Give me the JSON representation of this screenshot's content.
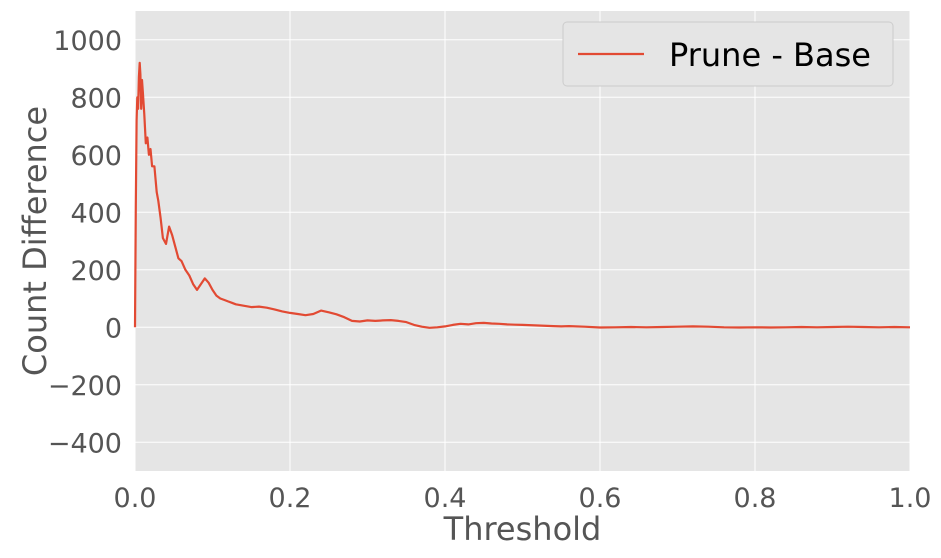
{
  "chart_data": {
    "type": "line",
    "xlabel": "Threshold",
    "ylabel": "Count Difference",
    "xlim": [
      0.0,
      1.0
    ],
    "ylim": [
      -500,
      1100
    ],
    "xticks": [
      0.0,
      0.2,
      0.4,
      0.6,
      0.8,
      1.0
    ],
    "xtick_labels": [
      "0.0",
      "0.2",
      "0.4",
      "0.6",
      "0.8",
      "1.0"
    ],
    "yticks": [
      -400,
      -200,
      0,
      200,
      400,
      600,
      800,
      1000
    ],
    "ytick_labels": [
      "−400",
      "−200",
      "0",
      "200",
      "400",
      "600",
      "800",
      "1000"
    ],
    "grid": true,
    "legend_position": "top-right",
    "background": "#e5e5e5",
    "grid_color": "#ffffff",
    "series": [
      {
        "name": "Prune - Base",
        "color": "#e24a33",
        "points": [
          [
            0.0,
            0
          ],
          [
            0.001,
            420
          ],
          [
            0.002,
            720
          ],
          [
            0.003,
            800
          ],
          [
            0.004,
            760
          ],
          [
            0.005,
            870
          ],
          [
            0.006,
            920
          ],
          [
            0.007,
            880
          ],
          [
            0.008,
            760
          ],
          [
            0.009,
            860
          ],
          [
            0.01,
            820
          ],
          [
            0.012,
            740
          ],
          [
            0.014,
            640
          ],
          [
            0.016,
            660
          ],
          [
            0.018,
            600
          ],
          [
            0.02,
            620
          ],
          [
            0.022,
            560
          ],
          [
            0.025,
            560
          ],
          [
            0.028,
            470
          ],
          [
            0.03,
            440
          ],
          [
            0.033,
            380
          ],
          [
            0.036,
            310
          ],
          [
            0.04,
            290
          ],
          [
            0.044,
            350
          ],
          [
            0.048,
            320
          ],
          [
            0.052,
            280
          ],
          [
            0.056,
            240
          ],
          [
            0.06,
            230
          ],
          [
            0.065,
            200
          ],
          [
            0.07,
            180
          ],
          [
            0.075,
            150
          ],
          [
            0.08,
            130
          ],
          [
            0.085,
            150
          ],
          [
            0.09,
            170
          ],
          [
            0.095,
            155
          ],
          [
            0.1,
            130
          ],
          [
            0.105,
            110
          ],
          [
            0.11,
            100
          ],
          [
            0.115,
            95
          ],
          [
            0.12,
            90
          ],
          [
            0.125,
            85
          ],
          [
            0.13,
            80
          ],
          [
            0.14,
            75
          ],
          [
            0.15,
            70
          ],
          [
            0.16,
            72
          ],
          [
            0.17,
            68
          ],
          [
            0.18,
            62
          ],
          [
            0.19,
            55
          ],
          [
            0.2,
            50
          ],
          [
            0.21,
            46
          ],
          [
            0.22,
            42
          ],
          [
            0.23,
            46
          ],
          [
            0.24,
            58
          ],
          [
            0.25,
            52
          ],
          [
            0.26,
            45
          ],
          [
            0.27,
            35
          ],
          [
            0.28,
            22
          ],
          [
            0.29,
            20
          ],
          [
            0.3,
            24
          ],
          [
            0.31,
            22
          ],
          [
            0.32,
            24
          ],
          [
            0.33,
            25
          ],
          [
            0.34,
            22
          ],
          [
            0.35,
            18
          ],
          [
            0.36,
            8
          ],
          [
            0.37,
            2
          ],
          [
            0.38,
            -2
          ],
          [
            0.39,
            0
          ],
          [
            0.4,
            3
          ],
          [
            0.41,
            8
          ],
          [
            0.42,
            12
          ],
          [
            0.43,
            10
          ],
          [
            0.44,
            14
          ],
          [
            0.45,
            15
          ],
          [
            0.46,
            13
          ],
          [
            0.47,
            12
          ],
          [
            0.48,
            10
          ],
          [
            0.49,
            9
          ],
          [
            0.5,
            8
          ],
          [
            0.52,
            6
          ],
          [
            0.54,
            4
          ],
          [
            0.55,
            3
          ],
          [
            0.56,
            4
          ],
          [
            0.58,
            2
          ],
          [
            0.6,
            -1
          ],
          [
            0.62,
            0
          ],
          [
            0.64,
            1
          ],
          [
            0.66,
            0
          ],
          [
            0.68,
            1
          ],
          [
            0.7,
            2
          ],
          [
            0.72,
            3
          ],
          [
            0.74,
            2
          ],
          [
            0.76,
            0
          ],
          [
            0.78,
            -1
          ],
          [
            0.8,
            0
          ],
          [
            0.82,
            -1
          ],
          [
            0.84,
            0
          ],
          [
            0.86,
            1
          ],
          [
            0.88,
            0
          ],
          [
            0.9,
            1
          ],
          [
            0.92,
            2
          ],
          [
            0.94,
            1
          ],
          [
            0.96,
            0
          ],
          [
            0.98,
            1
          ],
          [
            1.0,
            0
          ]
        ]
      }
    ]
  }
}
